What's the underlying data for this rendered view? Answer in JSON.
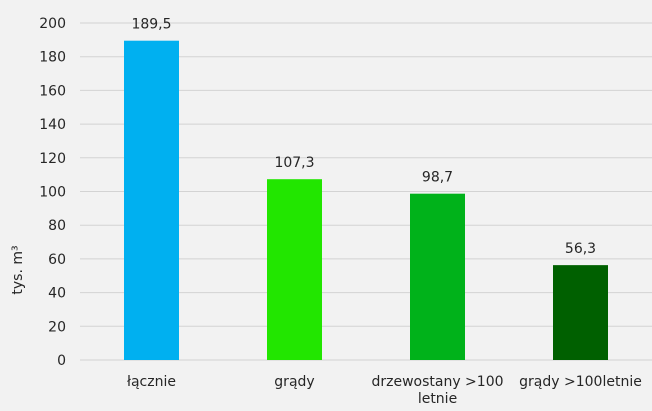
{
  "chart_data": {
    "type": "bar",
    "categories": [
      "łącznie",
      "grądy",
      "drzewostany >100 letnie",
      "grądy >100letnie"
    ],
    "category_lines": [
      [
        "łącznie"
      ],
      [
        "grądy"
      ],
      [
        "drzewostany >100",
        "letnie"
      ],
      [
        "grądy >100letnie"
      ]
    ],
    "values": [
      189.5,
      107.3,
      98.7,
      56.3
    ],
    "value_labels": [
      "189,5",
      "107,3",
      "98,7",
      "56,3"
    ],
    "colors": [
      "#00b0f0",
      "#22e600",
      "#00b21a",
      "#006000"
    ],
    "ylabel": "tys. m³",
    "ylim": [
      0,
      200
    ],
    "yticks": [
      0,
      20,
      40,
      60,
      80,
      100,
      120,
      140,
      160,
      180,
      200
    ],
    "grid": true,
    "legend": "none"
  }
}
